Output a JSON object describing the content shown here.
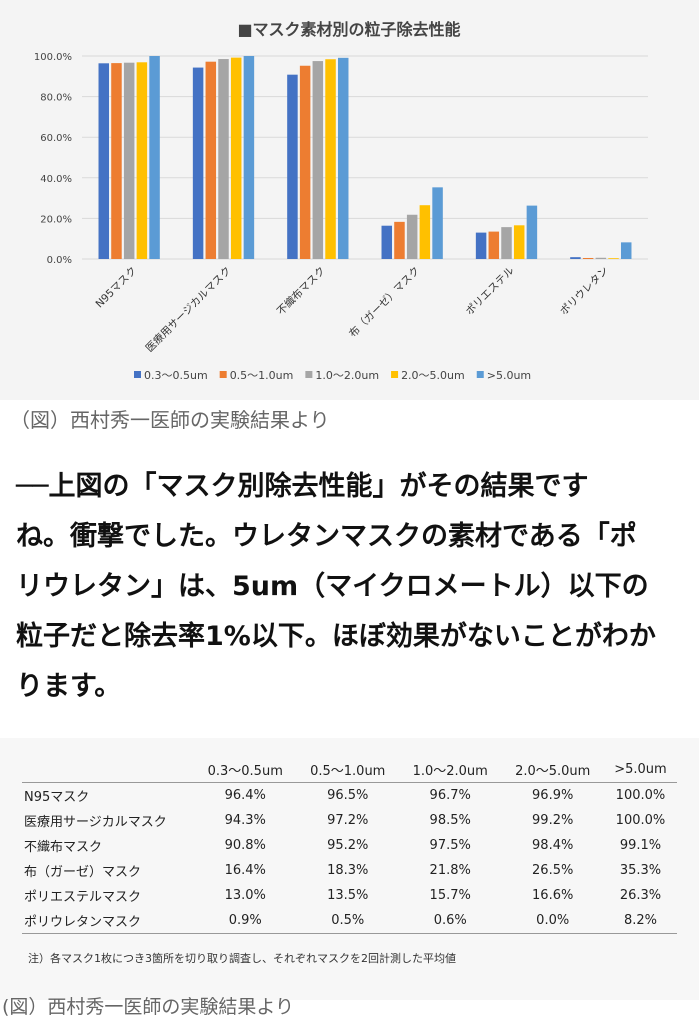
{
  "chart_data": {
    "type": "bar",
    "title": "■マスク素材別の粒子除去性能",
    "categories": [
      "N95マスク",
      "医療用サージカルマスク",
      "不織布マスク",
      "布（ガーゼ）マスク",
      "ポリエステル",
      "ポリウレタン"
    ],
    "series": [
      {
        "name": "0.3～0.5um",
        "color": "#4472c4",
        "values": [
          96.4,
          94.3,
          90.8,
          16.4,
          13.0,
          0.9
        ]
      },
      {
        "name": "0.5～1.0um",
        "color": "#ed7d31",
        "values": [
          96.5,
          97.2,
          95.2,
          18.3,
          13.5,
          0.5
        ]
      },
      {
        "name": "1.0～2.0um",
        "color": "#a5a5a5",
        "values": [
          96.7,
          98.5,
          97.5,
          21.8,
          15.7,
          0.6
        ]
      },
      {
        "name": "2.0～5.0um",
        "color": "#ffc000",
        "values": [
          96.9,
          99.2,
          98.4,
          26.5,
          16.6,
          0.0
        ]
      },
      {
        "name": ">5.0um",
        "color": "#5b9bd5",
        "values": [
          100.0,
          100.0,
          99.1,
          35.3,
          26.3,
          8.2
        ]
      }
    ],
    "yticks": [
      "0.0%",
      "20.0%",
      "40.0%",
      "60.0%",
      "80.0%",
      "100.0%"
    ],
    "ylim": [
      0,
      100
    ],
    "grid": true,
    "legend": "bottom"
  },
  "caption_top": "（図）西村秀一医師の実験結果より",
  "body_lines": [
    "──上図の「マスク別除去性能」がその結果です",
    "ね。衝撃でした。ウレタンマスクの素材である「ポ",
    "リウレタン」は、5um（マイクロメートル）以下の",
    "粒子だと除去率1%以下。ほぼ効果がないことがわか",
    "ります。"
  ],
  "table": {
    "headers": [
      "0.3～0.5um",
      "0.5～1.0um",
      "1.0～2.0um",
      "2.0～5.0um",
      ">5.0um"
    ],
    "rows": [
      {
        "name": "N95マスク",
        "values": [
          "96.4%",
          "96.5%",
          "96.7%",
          "96.9%",
          "100.0%"
        ]
      },
      {
        "name": "医療用サージカルマスク",
        "values": [
          "94.3%",
          "97.2%",
          "98.5%",
          "99.2%",
          "100.0%"
        ]
      },
      {
        "name": "不織布マスク",
        "values": [
          "90.8%",
          "95.2%",
          "97.5%",
          "98.4%",
          "99.1%"
        ]
      },
      {
        "name": "布（ガーゼ）マスク",
        "values": [
          "16.4%",
          "18.3%",
          "21.8%",
          "26.5%",
          "35.3%"
        ]
      },
      {
        "name": "ポリエステルマスク",
        "values": [
          "13.0%",
          "13.5%",
          "15.7%",
          "16.6%",
          "26.3%"
        ]
      },
      {
        "name": "ポリウレタンマスク",
        "values": [
          "0.9%",
          "0.5%",
          "0.6%",
          "0.0%",
          "8.2%"
        ]
      }
    ],
    "note": "注）各マスク1枚につき3箇所を切り取り調査し、それぞれマスクを2回計測した平均値"
  },
  "caption_bottom": "(図）西村秀一医師の実験結果より"
}
